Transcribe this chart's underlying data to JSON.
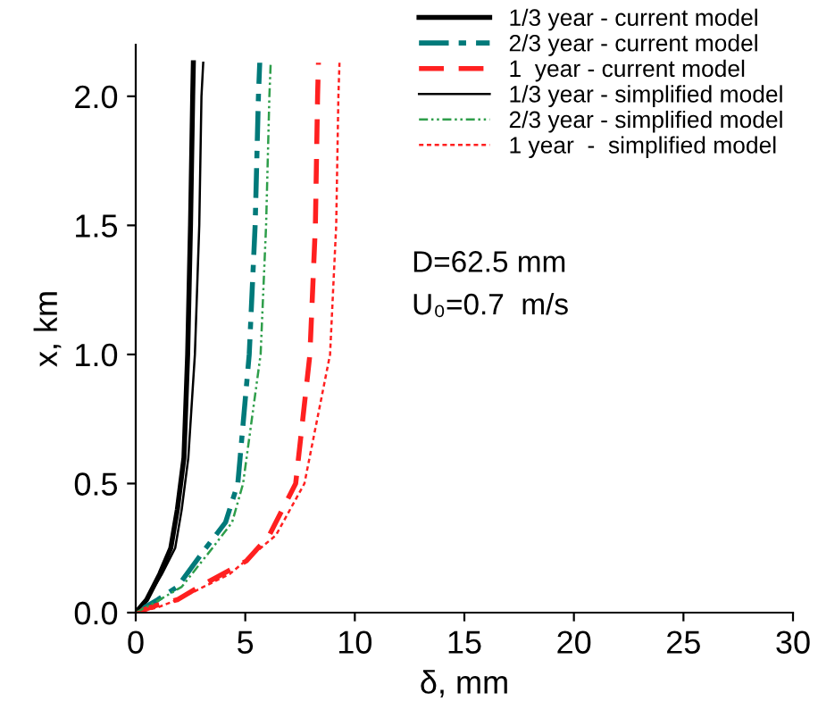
{
  "chart_data": {
    "type": "line",
    "xlabel": "δ, mm",
    "ylabel": "x, km",
    "xlim": [
      0,
      30
    ],
    "ylim": [
      0,
      2.2
    ],
    "xticks": [
      0,
      5,
      10,
      15,
      20,
      25,
      30
    ],
    "yticks": [
      {
        "value": 0,
        "label": "0.0"
      },
      0.5,
      {
        "value": 1,
        "label": "1.0"
      },
      1.5,
      {
        "value": 2,
        "label": "2.0"
      }
    ],
    "grid": false,
    "legend": "top right",
    "annotations": [
      "D=62.5 mm",
      "U₀=0.7  m/s"
    ],
    "series": [
      {
        "name": "1/3 year - current model",
        "color": "#000000",
        "line_style": "solid",
        "x": [
          0,
          0.5,
          1.1,
          1.6,
          1.9,
          2.2,
          2.37,
          2.5,
          2.6,
          2.63
        ],
        "values": [
          0,
          0.05,
          0.15,
          0.25,
          0.4,
          0.6,
          1.0,
          1.5,
          2.0,
          2.13
        ]
      },
      {
        "name": "2/3 year - current model",
        "color": "#007a7a",
        "line_style": "dashdot",
        "x": [
          0,
          1.0,
          1.9,
          3.2,
          4.1,
          4.66,
          5.18,
          5.45,
          5.6,
          5.66
        ],
        "values": [
          0,
          0.05,
          0.1,
          0.25,
          0.35,
          0.5,
          1.0,
          1.5,
          2.0,
          2.13
        ]
      },
      {
        "name": "1  year - current model",
        "color": "#ff2020",
        "line_style": "dashed",
        "x": [
          0,
          1.0,
          1.9,
          2.9,
          5.05,
          6.1,
          7.3,
          7.95,
          8.2,
          8.3,
          8.34
        ],
        "values": [
          0,
          0.03,
          0.05,
          0.1,
          0.2,
          0.3,
          0.5,
          1.0,
          1.5,
          2.0,
          2.13
        ]
      },
      {
        "name": "1/3 year - simplified model",
        "color": "#000000",
        "line_style": "solid",
        "x": [
          0,
          0.5,
          1.2,
          1.8,
          2.1,
          2.4,
          2.7,
          2.9,
          3.0,
          3.08
        ],
        "values": [
          0,
          0.05,
          0.15,
          0.25,
          0.4,
          0.6,
          1.0,
          1.5,
          2.0,
          2.13
        ]
      },
      {
        "name": "2/3 year - simplified model",
        "color": "#2e9e4a",
        "line_style": "dashdotdot",
        "x": [
          0,
          1.1,
          2.1,
          3.5,
          4.4,
          4.9,
          5.7,
          5.95,
          6.1,
          6.16
        ],
        "values": [
          0,
          0.05,
          0.1,
          0.25,
          0.35,
          0.5,
          1.0,
          1.5,
          2.0,
          2.13
        ]
      },
      {
        "name": "1 year  -  simplified model",
        "color": "#ff2020",
        "line_style": "dotted",
        "x": [
          0,
          1.0,
          1.9,
          4.3,
          6.4,
          7.7,
          8.87,
          9.15,
          9.25,
          9.3
        ],
        "values": [
          0,
          0.02,
          0.05,
          0.15,
          0.3,
          0.5,
          1.0,
          1.5,
          2.0,
          2.13
        ]
      }
    ]
  }
}
